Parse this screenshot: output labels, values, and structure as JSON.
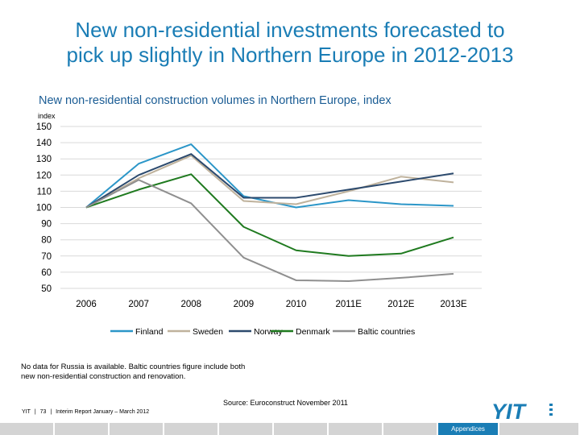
{
  "slide": {
    "title_line1": "New non-residential investments forecasted to",
    "title_line2": "pick up slightly in Northern Europe in 2012-2013",
    "subtitle": "New non-residential construction volumes in Northern Europe, index",
    "note_line1": "No data for Russia is available. Baltic countries figure include both",
    "note_line2": "new non-residential construction and renovation.",
    "source": "Source: Euroconstruct November 2011",
    "footer": {
      "company": "YIT",
      "sep1": "|",
      "page": "73",
      "sep2": "|",
      "report": "Interim Report January – March 2012"
    },
    "section_tab": "Appendices",
    "logo_text": "YIT",
    "logo_color": "#1a7db5"
  },
  "chart_data": {
    "type": "line",
    "ylabel": "index",
    "ylim": [
      50,
      150
    ],
    "yticks": [
      150,
      140,
      130,
      120,
      110,
      100,
      90,
      80,
      70,
      60,
      50
    ],
    "grid": "horizontal",
    "legend_position": "bottom",
    "categories": [
      "2006",
      "2007",
      "2008",
      "2009",
      "2010",
      "2011E",
      "2012E",
      "2013E"
    ],
    "series": [
      {
        "name": "Finland",
        "color": "#2b96c8",
        "values": [
          100,
          127,
          139,
          107,
          100,
          104.5,
          102,
          101
        ]
      },
      {
        "name": "Sweden",
        "color": "#bfb29c",
        "values": [
          100,
          118,
          132,
          104,
          102,
          110,
          119,
          115.5
        ]
      },
      {
        "name": "Norway",
        "color": "#2c4a6e",
        "values": [
          100,
          120,
          133,
          106,
          106,
          111,
          116,
          121
        ]
      },
      {
        "name": "Denmark",
        "color": "#1f7a1f",
        "values": [
          100,
          111,
          120.5,
          88,
          73.5,
          70,
          71.5,
          81.5
        ]
      },
      {
        "name": "Baltic countries",
        "color": "#8f8f8f",
        "values": [
          100,
          117,
          102.5,
          69,
          55,
          54.5,
          56.5,
          59
        ]
      }
    ]
  }
}
